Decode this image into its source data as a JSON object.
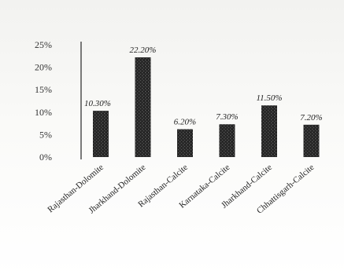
{
  "chart_data": {
    "type": "bar",
    "categories": [
      "Rajasthan-Dolomite",
      "Jharkhand-Dolomite",
      "Rajasthan-Calcite",
      "Karnataka-Calcite",
      "Jharkhand-Calcite",
      "Chhattisgarh-Calcite"
    ],
    "values": [
      10.3,
      22.2,
      6.2,
      7.3,
      11.5,
      7.2
    ],
    "data_labels": [
      "10.30%",
      "22.20%",
      "6.20%",
      "7.30%",
      "11.50%",
      "7.20%"
    ],
    "yticks": [
      "0%",
      "5%",
      "10%",
      "15%",
      "20%",
      "25%"
    ],
    "ylim": [
      0,
      25
    ],
    "grid": false,
    "bar_color": "#2a2a2a"
  }
}
